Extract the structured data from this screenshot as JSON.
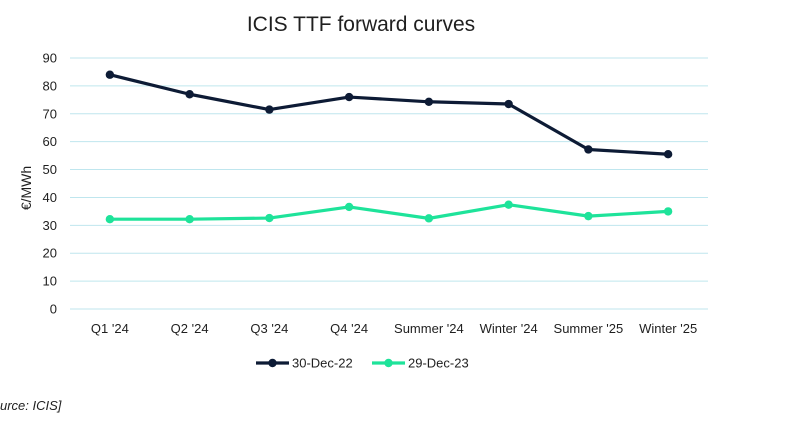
{
  "chart_data": {
    "type": "line",
    "title": "ICIS TTF forward curves",
    "xlabel": "",
    "ylabel": "€/MWh",
    "ylim": [
      0,
      90
    ],
    "yticks": [
      0,
      10,
      20,
      30,
      40,
      50,
      60,
      70,
      80,
      90
    ],
    "grid": true,
    "legend_position": "bottom-center",
    "categories": [
      "Q1 '24",
      "Q2 '24",
      "Q3 '24",
      "Q4 '24",
      "Summer '24",
      "Winter '24",
      "Summer '25",
      "Winter '25"
    ],
    "series": [
      {
        "name": "30-Dec-22",
        "color": "#0d1b35",
        "values": [
          84,
          77,
          71.5,
          76,
          74.3,
          73.5,
          57.2,
          55.5
        ]
      },
      {
        "name": "29-Dec-23",
        "color": "#1ee39a",
        "values": [
          32.2,
          32.2,
          32.6,
          36.6,
          32.5,
          37.4,
          33.3,
          35.0
        ]
      }
    ]
  },
  "source_note": "urce: ICIS]",
  "colors": {
    "grid": "#bfe6ee",
    "text": "#1f1f1f"
  }
}
